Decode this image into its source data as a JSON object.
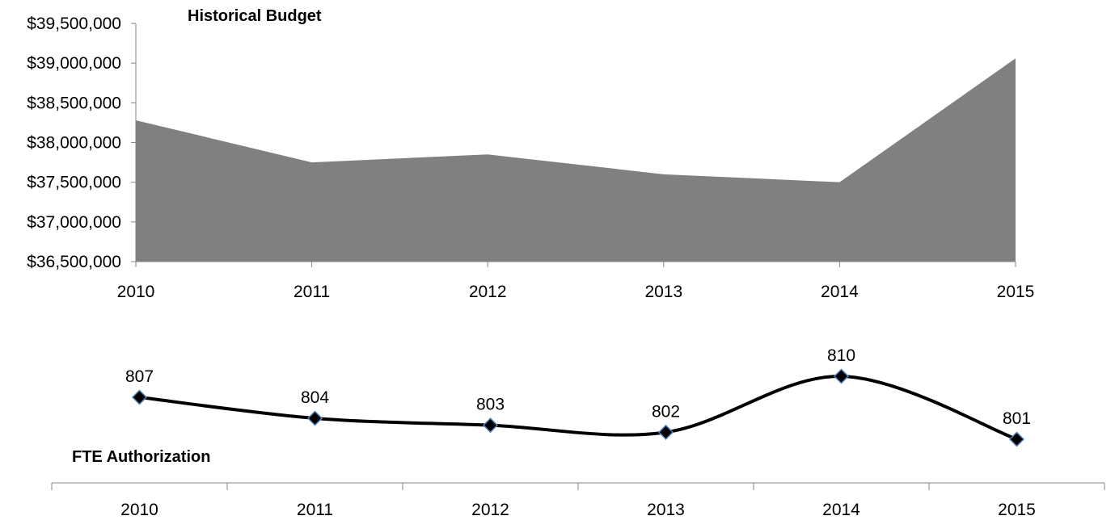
{
  "chart_data": [
    {
      "type": "area",
      "title": "Historical Budget",
      "categories": [
        "2010",
        "2011",
        "2012",
        "2013",
        "2014",
        "2015"
      ],
      "values": [
        38280000,
        37750000,
        37850000,
        37600000,
        37500000,
        39060000
      ],
      "ylim": [
        36500000,
        39500000
      ],
      "ytick_labels": [
        "$39,500,000",
        "$39,000,000",
        "$38,500,000",
        "$38,000,000",
        "$37,500,000",
        "$37,000,000",
        "$36,500,000"
      ],
      "legend": "none",
      "grid": false,
      "color": "#808080"
    },
    {
      "type": "line",
      "title": "FTE Authorization",
      "categories": [
        "2010",
        "2011",
        "2012",
        "2013",
        "2014",
        "2015"
      ],
      "values": [
        807,
        804,
        803,
        802,
        810,
        801
      ],
      "data_labels": [
        "807",
        "804",
        "803",
        "802",
        "810",
        "801"
      ],
      "smooth": true,
      "marker": "diamond",
      "legend": "none",
      "grid": false,
      "line_color": "#000000",
      "marker_color": "#000000",
      "marker_edge_color": "#4f81bd"
    }
  ]
}
